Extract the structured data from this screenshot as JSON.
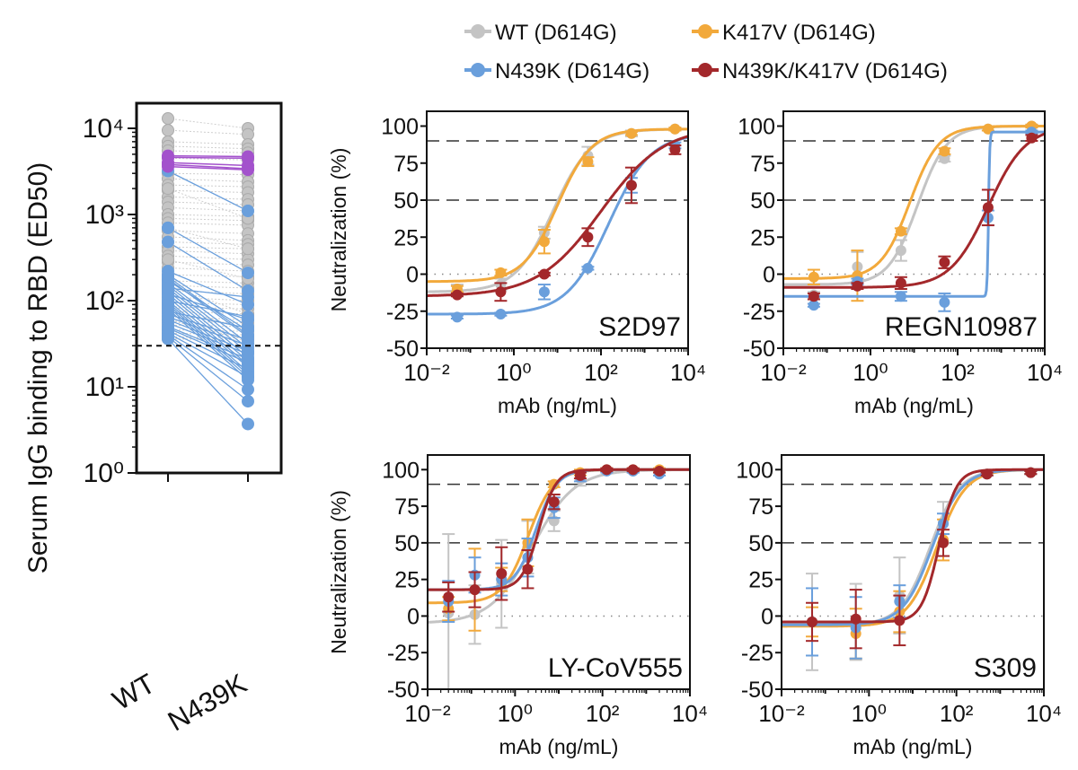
{
  "legend": {
    "position": "top",
    "items": [
      {
        "label": "WT (D614G)",
        "color": "#c4c4c4"
      },
      {
        "label": "K417V (D614G)",
        "color": "#f2a93b"
      },
      {
        "label": "N439K (D614G)",
        "color": "#6a9fdc"
      },
      {
        "label": "N439K/K417V (D614G)",
        "color": "#a3282b"
      }
    ]
  },
  "chart_data": [
    {
      "type": "scatter",
      "subtype": "paired-dot (log scale)",
      "ylabel": "Serum IgG binding to RBD (ED50)",
      "categories": [
        "WT",
        "N439K"
      ],
      "y_scale": "log",
      "ylim": [
        1,
        20000
      ],
      "y_ticks": [
        "10⁰",
        "10¹",
        "10²",
        "10³",
        "10⁴"
      ],
      "threshold_line": 30,
      "colors": {
        "unchanged": "#c4c4c4",
        "reduced": "#6a9fdc",
        "highlight": "#a352cc"
      },
      "pairs_unchanged": [
        [
          13000,
          10000
        ],
        [
          9500,
          8500
        ],
        [
          7000,
          6500
        ],
        [
          6200,
          5800
        ],
        [
          5500,
          5200
        ],
        [
          4500,
          4300
        ],
        [
          3000,
          2900
        ],
        [
          2600,
          2400
        ],
        [
          2200,
          2100
        ],
        [
          1900,
          1800
        ],
        [
          1600,
          1500
        ],
        [
          1400,
          1300
        ],
        [
          1200,
          1100
        ],
        [
          1000,
          950
        ],
        [
          900,
          850
        ],
        [
          800,
          750
        ],
        [
          650,
          600
        ],
        [
          550,
          500
        ],
        [
          480,
          450
        ],
        [
          420,
          400
        ],
        [
          380,
          350
        ],
        [
          330,
          300
        ],
        [
          280,
          260
        ],
        [
          240,
          220
        ],
        [
          200,
          190
        ],
        [
          170,
          160
        ],
        [
          150,
          140
        ],
        [
          130,
          120
        ],
        [
          110,
          100
        ],
        [
          95,
          90
        ],
        [
          85,
          80
        ],
        [
          75,
          70
        ],
        [
          65,
          60
        ],
        [
          58,
          55
        ],
        [
          52,
          50
        ],
        [
          46,
          44
        ],
        [
          42,
          40
        ],
        [
          38,
          37
        ],
        [
          36,
          35
        ],
        [
          300,
          180
        ],
        [
          150,
          70
        ],
        [
          90,
          45
        ],
        [
          60,
          35
        ],
        [
          2000,
          900
        ],
        [
          700,
          400
        ]
      ],
      "pairs_reduced": [
        [
          3200,
          1100
        ],
        [
          700,
          210
        ],
        [
          480,
          130
        ],
        [
          220,
          90
        ],
        [
          200,
          50
        ],
        [
          190,
          40
        ],
        [
          180,
          38
        ],
        [
          170,
          45
        ],
        [
          160,
          32
        ],
        [
          150,
          28
        ],
        [
          140,
          25
        ],
        [
          130,
          22
        ],
        [
          120,
          20
        ],
        [
          110,
          18
        ],
        [
          100,
          17
        ],
        [
          95,
          15
        ],
        [
          90,
          14
        ],
        [
          85,
          13
        ],
        [
          80,
          12
        ],
        [
          75,
          48
        ],
        [
          70,
          35
        ],
        [
          65,
          30
        ],
        [
          60,
          26
        ],
        [
          55,
          24
        ],
        [
          50,
          21
        ],
        [
          48,
          19
        ],
        [
          45,
          16
        ],
        [
          42,
          13
        ],
        [
          40,
          9.3
        ],
        [
          38,
          6.8
        ],
        [
          36,
          3.7
        ],
        [
          100,
          65
        ],
        [
          120,
          60
        ],
        [
          140,
          110
        ]
      ],
      "pairs_highlight": [
        [
          4800,
          4700
        ],
        [
          4600,
          4500
        ],
        [
          4000,
          3700
        ],
        [
          3800,
          3400
        ],
        [
          3600,
          3300
        ]
      ]
    },
    {
      "type": "line",
      "title": "S2D97",
      "xlabel": "mAb (ng/mL)",
      "ylabel": "Neutralization (%)",
      "x_scale": "log",
      "xlim": [
        0.01,
        10000
      ],
      "ylim": [
        -50,
        110
      ],
      "x_ticks": [
        "10⁻²",
        "10⁰",
        "10²",
        "10⁴"
      ],
      "y_ticks": [
        "-50",
        "-25",
        "0",
        "25",
        "50",
        "75",
        "100"
      ],
      "reference_lines": {
        "dashed": [
          50,
          90
        ],
        "dotted": [
          0
        ]
      },
      "x": [
        0.05,
        0.5,
        5,
        50,
        500,
        5000
      ],
      "series": [
        {
          "name": "WT (D614G)",
          "values": [
            -10,
            -7,
            28,
            80,
            95,
            98
          ],
          "err": [
            3,
            4,
            4,
            6,
            2,
            1
          ],
          "fit": {
            "bottom": -12,
            "top": 98,
            "ec50": 8,
            "hill": 1.0
          }
        },
        {
          "name": "K417V (D614G)",
          "values": [
            -10,
            1,
            22,
            76,
            95,
            98
          ],
          "err": [
            2,
            2,
            8,
            3,
            1,
            1
          ],
          "fit": {
            "bottom": -5,
            "top": 98,
            "ec50": 10,
            "hill": 1.1
          }
        },
        {
          "name": "N439K (D614G)",
          "values": [
            -29,
            -27,
            -12,
            4,
            60,
            87
          ],
          "err": [
            1,
            1,
            5,
            1,
            5,
            2
          ],
          "fit": {
            "bottom": -27,
            "top": 95,
            "ec50": 150,
            "hill": 0.9
          }
        },
        {
          "name": "N439K/K417V (D614G)",
          "values": [
            -14,
            -12,
            0,
            25,
            60,
            84
          ],
          "err": [
            1,
            6,
            1,
            6,
            12,
            3
          ],
          "fit": {
            "bottom": -15,
            "top": 100,
            "ec50": 100,
            "hill": 0.6
          }
        }
      ]
    },
    {
      "type": "line",
      "title": "REGN10987",
      "xlabel": "mAb (ng/mL)",
      "ylabel": "",
      "x_scale": "log",
      "xlim": [
        0.01,
        10000
      ],
      "ylim": [
        -50,
        110
      ],
      "x_ticks": [
        "10⁻²",
        "10⁰",
        "10²",
        "10⁴"
      ],
      "y_ticks": [
        "-50",
        "-25",
        "0",
        "25",
        "50",
        "75",
        "100"
      ],
      "reference_lines": {
        "dashed": [
          50,
          90
        ],
        "dotted": [
          0
        ]
      },
      "x": [
        0.05,
        0.5,
        5,
        50,
        500,
        5000
      ],
      "series": [
        {
          "name": "WT (D614G)",
          "values": [
            -14,
            5,
            16,
            78,
            98,
            100
          ],
          "err": [
            2,
            10,
            7,
            2,
            1,
            1
          ],
          "fit": {
            "bottom": -7,
            "top": 100,
            "ec50": 12,
            "hill": 1.3
          }
        },
        {
          "name": "K417V (D614G)",
          "values": [
            -2,
            -1,
            29,
            83,
            98,
            100
          ],
          "err": [
            5,
            17,
            2,
            2,
            1,
            1
          ],
          "fit": {
            "bottom": -3,
            "top": 100,
            "ec50": 8,
            "hill": 1.3
          }
        },
        {
          "name": "N439K (D614G)",
          "values": [
            -21,
            -5,
            -15,
            -19,
            38,
            96
          ],
          "err": [
            1,
            2,
            3,
            6,
            5,
            1
          ],
          "fit": {
            "bottom": -15,
            "top": 96,
            "ec50": 510,
            "hill": 30
          }
        },
        {
          "name": "N439K/K417V (D614G)",
          "values": [
            -15,
            -8,
            -6,
            8,
            45,
            92
          ],
          "err": [
            2,
            2,
            4,
            4,
            12,
            2
          ],
          "fit": {
            "bottom": -9,
            "top": 100,
            "ec50": 500,
            "hill": 1.0
          }
        }
      ]
    },
    {
      "type": "line",
      "title": "LY-CoV555",
      "xlabel": "mAb (ng/mL)",
      "ylabel": "Neutralization (%)",
      "x_scale": "log",
      "xlim": [
        0.01,
        10000
      ],
      "ylim": [
        -50,
        110
      ],
      "x_ticks": [
        "10⁻²",
        "10⁰",
        "10²",
        "10⁴"
      ],
      "y_ticks": [
        "-50",
        "-25",
        "0",
        "25",
        "50",
        "75",
        "100"
      ],
      "reference_lines": {
        "dashed": [
          50,
          90
        ],
        "dotted": [
          0
        ]
      },
      "x": [
        0.03,
        0.12,
        0.49,
        1.95,
        7.8,
        31,
        125,
        500,
        2000
      ],
      "series": [
        {
          "name": "WT (D614G)",
          "values": [
            2,
            1,
            22,
            47,
            65,
            94,
            100,
            99,
            99
          ],
          "err": [
            54,
            20,
            30,
            18,
            7,
            5,
            1,
            1,
            1
          ],
          "fit": {
            "bottom": -5,
            "top": 100,
            "ec50": 2.5,
            "hill": 0.9
          }
        },
        {
          "name": "K417V (D614G)",
          "values": [
            5,
            18,
            25,
            50,
            90,
            98,
            100,
            100,
            100
          ],
          "err": [
            8,
            28,
            8,
            16,
            2,
            2,
            1,
            1,
            1
          ],
          "fit": {
            "bottom": 9,
            "top": 100,
            "ec50": 2,
            "hill": 1.5
          }
        },
        {
          "name": "N439K (D614G)",
          "values": [
            10,
            28,
            25,
            40,
            74,
            95,
            99,
            99,
            97
          ],
          "err": [
            14,
            12,
            11,
            13,
            7,
            3,
            1,
            1,
            1
          ],
          "fit": {
            "bottom": 18,
            "top": 100,
            "ec50": 3,
            "hill": 1.8
          }
        },
        {
          "name": "N439K/K417V (D614G)",
          "values": [
            13,
            18,
            29,
            32,
            78,
            96,
            100,
            100,
            99
          ],
          "err": [
            10,
            12,
            18,
            13,
            5,
            2,
            1,
            1,
            1
          ],
          "fit": {
            "bottom": 18,
            "top": 100,
            "ec50": 3.5,
            "hill": 2.2
          }
        }
      ]
    },
    {
      "type": "line",
      "title": "S309",
      "xlabel": "mAb (ng/mL)",
      "ylabel": "",
      "x_scale": "log",
      "xlim": [
        0.01,
        10000
      ],
      "ylim": [
        -50,
        110
      ],
      "x_ticks": [
        "10⁻²",
        "10⁰",
        "10²",
        "10⁴"
      ],
      "y_ticks": [
        "-50",
        "-25",
        "0",
        "25",
        "50",
        "75",
        "100"
      ],
      "reference_lines": {
        "dashed": [
          50,
          90
        ],
        "dotted": [
          0
        ]
      },
      "x": [
        0.05,
        0.5,
        5,
        50,
        500,
        5000
      ],
      "series": [
        {
          "name": "WT (D614G)",
          "values": [
            -4,
            -4,
            14,
            64,
            97,
            98
          ],
          "err": [
            33,
            26,
            26,
            14,
            1,
            1
          ],
          "fit": {
            "bottom": -6,
            "top": 100,
            "ec50": 25,
            "hill": 1.3
          }
        },
        {
          "name": "K417V (D614G)",
          "values": [
            -4,
            -12,
            3,
            52,
            97,
            98
          ],
          "err": [
            10,
            17,
            14,
            14,
            1,
            1
          ],
          "fit": {
            "bottom": -7,
            "top": 100,
            "ec50": 35,
            "hill": 1.3
          }
        },
        {
          "name": "N439K (D614G)",
          "values": [
            -4,
            -8,
            10,
            63,
            97,
            98
          ],
          "err": [
            23,
            21,
            11,
            7,
            1,
            1
          ],
          "fit": {
            "bottom": -6,
            "top": 100,
            "ec50": 28,
            "hill": 1.3
          }
        },
        {
          "name": "N439K/K417V (D614G)",
          "values": [
            -4,
            -2,
            -3,
            50,
            97,
            98
          ],
          "err": [
            13,
            20,
            17,
            9,
            1,
            1
          ],
          "fit": {
            "bottom": -4,
            "top": 100,
            "ec50": 40,
            "hill": 2.2
          }
        }
      ]
    }
  ]
}
